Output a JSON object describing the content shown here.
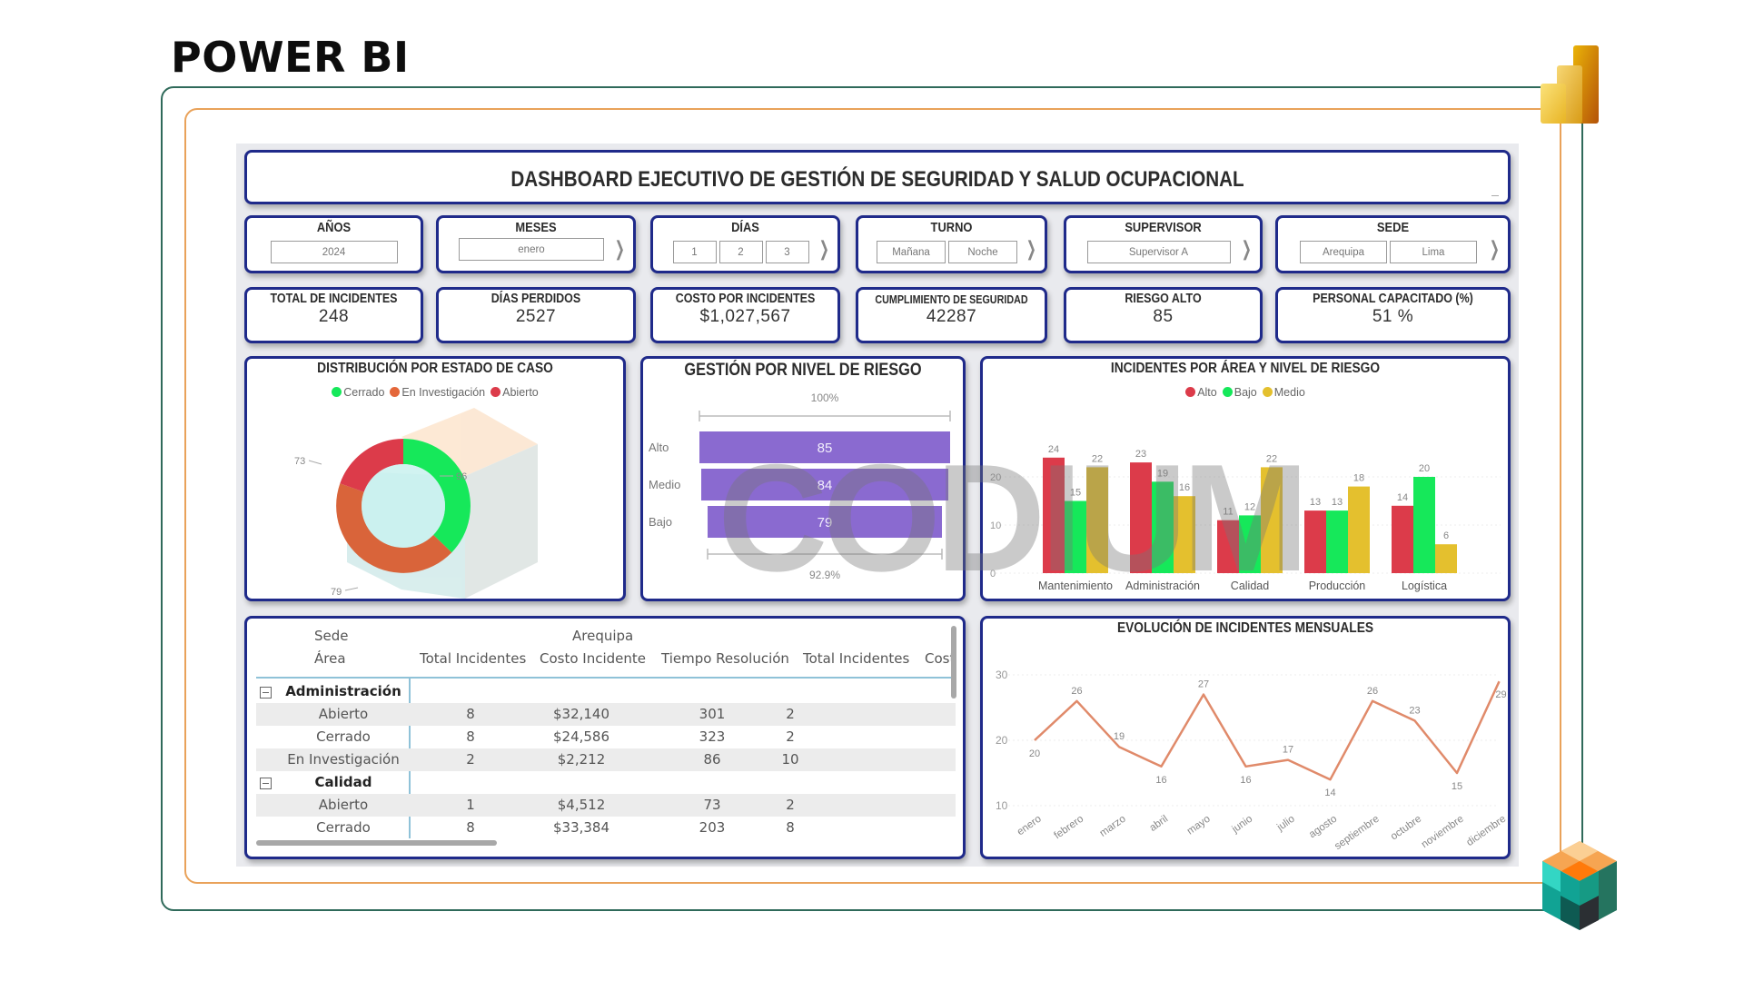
{
  "page": {
    "heading": "POWER BI"
  },
  "dashboard": {
    "title": "DASHBOARD EJECUTIVO DE GESTIÓN DE SEGURIDAD Y SALUD OCUPACIONAL",
    "colors": {
      "card_border": "#1f2a8a",
      "frame_outer": "#2f6a5a",
      "frame_inner": "#e9a25a",
      "alto": "#dc3b4a",
      "bajo": "#16e85a",
      "medio": "#e4c02e",
      "en_investigacion": "#e4673a",
      "risk_bar": "#8a6ad0",
      "line": "#e08a6a"
    }
  },
  "filters": [
    {
      "label": "AÑOS",
      "options": [
        "2024"
      ],
      "has_next": false
    },
    {
      "label": "MESES",
      "options": [
        "enero"
      ],
      "has_next": true
    },
    {
      "label": "DÍAS",
      "options": [
        "1",
        "2",
        "3"
      ],
      "has_next": true
    },
    {
      "label": "TURNO",
      "options": [
        "Mañana",
        "Noche"
      ],
      "has_next": true
    },
    {
      "label": "SUPERVISOR",
      "options": [
        "Supervisor A"
      ],
      "has_next": true
    },
    {
      "label": "SEDE",
      "options": [
        "Arequipa",
        "Lima"
      ],
      "has_next": true
    }
  ],
  "kpis": [
    {
      "label": "TOTAL DE INCIDENTES",
      "value": "248"
    },
    {
      "label": "DÍAS PERDIDOS",
      "value": "2527"
    },
    {
      "label": "COSTO POR INCIDENTES",
      "value": "$1,027,567"
    },
    {
      "label": "CUMPLIMIENTO DE SEGURIDAD",
      "value": "42287"
    },
    {
      "label": "RIESGO ALTO",
      "value": "85"
    },
    {
      "label": "PERSONAL CAPACITADO (%)",
      "value": "51 %"
    }
  ],
  "donut": {
    "title": "DISTRIBUCIÓN POR ESTADO DE CASO",
    "legend": [
      "Cerrado",
      "En Investigación",
      "Abierto"
    ],
    "labels": [
      "96",
      "79",
      "73"
    ]
  },
  "funnel": {
    "title": "GESTIÓN POR NIVEL DE RIESGO",
    "top_label": "100%",
    "bottom_label": "92.9%",
    "categories": [
      "Alto",
      "Medio",
      "Bajo"
    ],
    "values": [
      "85",
      "84",
      "79"
    ]
  },
  "area_chart": {
    "title": "INCIDENTES POR ÁREA Y NIVEL DE RIESGO",
    "legend": [
      "Alto",
      "Bajo",
      "Medio"
    ],
    "axis": [
      "20",
      "10",
      "0"
    ]
  },
  "line_chart": {
    "title": "EVOLUCIÓN DE INCIDENTES MENSUALES",
    "axis": [
      "30",
      "20",
      "10"
    ]
  },
  "table": {
    "row_header_1": "Sede",
    "row_header_2": "Área",
    "sede_group": "Arequipa",
    "columns": [
      "Total Incidentes",
      "Costo Incidente",
      "Tiempo Resolución",
      "Total Incidentes",
      "Cost"
    ],
    "rows": [
      {
        "area": "Administración",
        "group": true,
        "cells": [
          "",
          "",
          "",
          ""
        ]
      },
      {
        "area": "Abierto",
        "group": false,
        "cells": [
          "8",
          "$32,140",
          "301",
          "2"
        ]
      },
      {
        "area": "Cerrado",
        "group": false,
        "cells": [
          "8",
          "$24,586",
          "323",
          "2"
        ]
      },
      {
        "area": "En Investigación",
        "group": false,
        "cells": [
          "2",
          "$2,212",
          "86",
          "10"
        ]
      },
      {
        "area": "Calidad",
        "group": true,
        "cells": [
          "",
          "",
          "",
          ""
        ]
      },
      {
        "area": "Abierto",
        "group": false,
        "cells": [
          "1",
          "$4,512",
          "73",
          "2"
        ]
      },
      {
        "area": "Cerrado",
        "group": false,
        "cells": [
          "8",
          "$33,384",
          "203",
          "8"
        ]
      }
    ]
  },
  "watermark": {
    "text": "CODIUM"
  },
  "chart_data": [
    {
      "type": "pie",
      "title": "DISTRIBUCIÓN POR ESTADO DE CASO",
      "categories": [
        "Cerrado",
        "En Investigación",
        "Abierto"
      ],
      "values": [
        96,
        79,
        73
      ],
      "legend_position": "top",
      "donut": true
    },
    {
      "type": "bar",
      "title": "GESTIÓN POR NIVEL DE RIESGO",
      "categories": [
        "Alto",
        "Medio",
        "Bajo"
      ],
      "values": [
        85,
        84,
        79
      ],
      "orientation": "horizontal-funnel",
      "annotations": [
        "100%",
        "92.9%"
      ]
    },
    {
      "type": "bar",
      "title": "INCIDENTES POR ÁREA Y NIVEL DE RIESGO",
      "categories": [
        "Mantenimiento",
        "Administración",
        "Calidad",
        "Producción",
        "Logística"
      ],
      "series": [
        {
          "name": "Alto",
          "values": [
            24,
            23,
            11,
            13,
            14
          ]
        },
        {
          "name": "Bajo",
          "values": [
            15,
            19,
            12,
            13,
            20
          ]
        },
        {
          "name": "Medio",
          "values": [
            22,
            16,
            22,
            18,
            6
          ]
        }
      ],
      "ylim": [
        0,
        25
      ],
      "yticks": [
        0,
        10,
        20
      ],
      "legend_position": "top",
      "grid": true
    },
    {
      "type": "line",
      "title": "EVOLUCIÓN DE INCIDENTES MENSUALES",
      "x": [
        "enero",
        "febrero",
        "marzo",
        "abril",
        "mayo",
        "junio",
        "julio",
        "agosto",
        "septiembre",
        "octubre",
        "noviembre",
        "diciembre"
      ],
      "values": [
        20,
        26,
        19,
        16,
        27,
        16,
        17,
        14,
        26,
        23,
        15,
        29
      ],
      "ylim": [
        10,
        30
      ],
      "yticks": [
        10,
        20,
        30
      ],
      "grid": true
    }
  ]
}
